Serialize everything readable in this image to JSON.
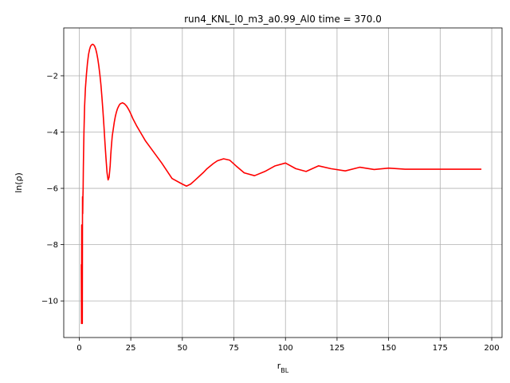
{
  "chart_data": {
    "type": "line",
    "title": "run4_KNL_l0_m3_a0.99_Al0 time = 370.0",
    "xlabel_base": "r",
    "xlabel_sub": "BL",
    "ylabel": "ln(ρ)",
    "xlim": [
      -7.5,
      205
    ],
    "ylim": [
      -11.3,
      -0.3
    ],
    "xticks": [
      0,
      25,
      50,
      75,
      100,
      125,
      150,
      175,
      200
    ],
    "yticks": [
      -10,
      -8,
      -6,
      -4,
      -2
    ],
    "ytick_labels": [
      "−10",
      "−8",
      "−6",
      "−4",
      "−2"
    ],
    "grid": true,
    "color": "#ff0000",
    "series": [
      {
        "x": [
          1.0,
          1.1,
          1.2,
          1.3,
          1.4,
          1.5,
          1.6,
          1.7,
          1.8,
          1.9,
          2.0,
          2.1,
          2.3,
          2.6,
          3.0,
          3.5,
          4.0,
          4.5,
          5.0,
          5.5,
          6.0,
          6.5,
          7.0,
          7.5,
          8.0,
          8.5,
          9.0,
          9.5,
          10.0,
          10.5,
          11.0,
          11.5,
          12.0,
          12.5,
          13.0,
          13.5,
          14.0,
          14.5,
          15.0,
          15.3,
          15.6,
          16.0,
          16.5,
          17.0,
          17.5,
          18.0,
          18.5,
          19.0,
          19.5,
          20.0,
          21.0,
          22.0,
          23.0,
          24.0,
          25.0,
          26.0,
          28.0,
          30.0,
          32.0,
          35.0,
          40.0,
          45.0,
          50.0,
          52.0,
          54.0,
          56.0,
          60.0,
          62.0,
          65.0,
          67.0,
          70.0,
          73.0,
          76.0,
          80.0,
          85.0,
          90.0,
          95.0,
          100.0,
          105.0,
          110.0,
          116.0,
          122.0,
          129.0,
          136.0,
          143.0,
          150.0,
          158.0,
          165.0,
          175.0,
          185.0,
          195.0
        ],
        "y": [
          -8.7,
          -10.8,
          -7.3,
          -10.8,
          -8.0,
          -10.8,
          -6.3,
          -6.9,
          -6.3,
          -6.0,
          -5.3,
          -4.8,
          -4.0,
          -3.1,
          -2.45,
          -1.95,
          -1.55,
          -1.25,
          -1.07,
          -0.95,
          -0.9,
          -0.88,
          -0.9,
          -0.95,
          -1.05,
          -1.2,
          -1.4,
          -1.65,
          -1.95,
          -2.3,
          -2.75,
          -3.25,
          -3.8,
          -4.4,
          -4.95,
          -5.45,
          -5.7,
          -5.6,
          -5.2,
          -4.8,
          -4.5,
          -4.15,
          -3.9,
          -3.65,
          -3.45,
          -3.3,
          -3.18,
          -3.1,
          -3.03,
          -2.99,
          -2.96,
          -3.0,
          -3.08,
          -3.2,
          -3.35,
          -3.52,
          -3.8,
          -4.05,
          -4.3,
          -4.6,
          -5.1,
          -5.65,
          -5.85,
          -5.92,
          -5.85,
          -5.72,
          -5.45,
          -5.3,
          -5.12,
          -5.02,
          -4.95,
          -5.0,
          -5.2,
          -5.45,
          -5.55,
          -5.4,
          -5.2,
          -5.1,
          -5.3,
          -5.4,
          -5.2,
          -5.3,
          -5.38,
          -5.25,
          -5.33,
          -5.28,
          -5.32,
          -5.32,
          -5.32,
          -5.32,
          -5.32
        ]
      }
    ]
  }
}
